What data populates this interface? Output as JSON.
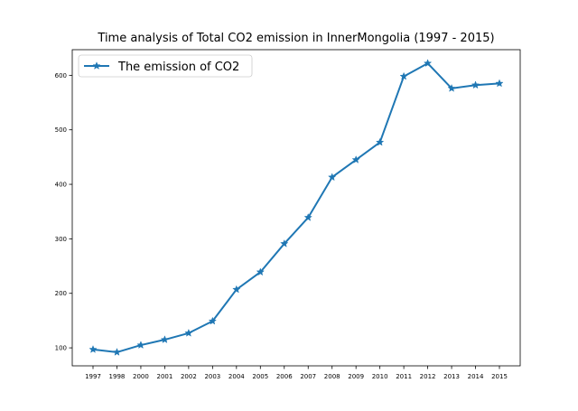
{
  "chart_data": {
    "type": "line",
    "title": "Time analysis of Total CO2 emission in InnerMongolia (1997 - 2015)",
    "xlabel": "",
    "ylabel": "",
    "categories": [
      "1997",
      "1998",
      "2000",
      "2001",
      "2002",
      "2003",
      "2004",
      "2005",
      "2006",
      "2007",
      "2008",
      "2009",
      "2010",
      "2011",
      "2012",
      "2013",
      "2014",
      "2015"
    ],
    "series": [
      {
        "name": "The emission of CO2",
        "values": [
          97,
          92,
          105,
          115,
          127,
          149,
          207,
          239,
          291,
          339,
          413,
          445,
          477,
          598,
          622,
          576,
          582,
          585
        ]
      }
    ],
    "ylim": [
      67,
      647
    ],
    "yticks": [
      100,
      200,
      300,
      400,
      500,
      600
    ],
    "legend": "top-left",
    "grid": false,
    "color": "#1f77b4",
    "marker": "star"
  }
}
